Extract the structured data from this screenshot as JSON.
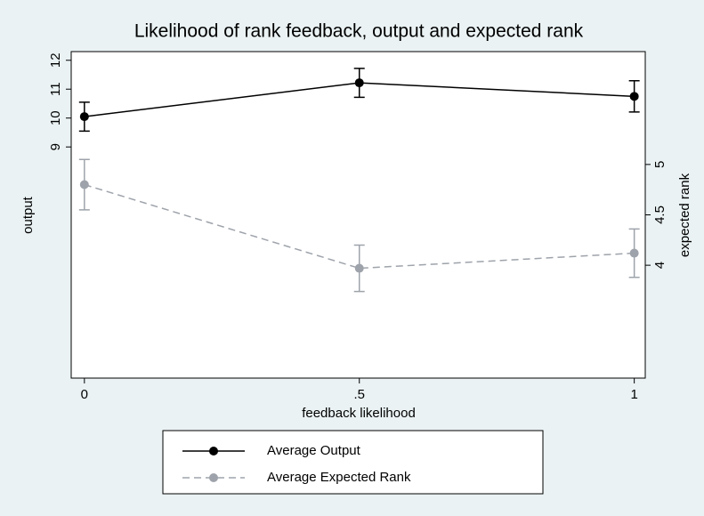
{
  "chart_data": {
    "type": "line",
    "title": "Likelihood of rank feedback, output and expected rank",
    "xlabel": "feedback likelihood",
    "ylabel": "output",
    "y2label": "expected rank",
    "x": [
      0,
      0.5,
      1
    ],
    "xlim": [
      -0.024,
      1.02
    ],
    "xticks": [
      0,
      {
        "value": 0.5,
        "label": ".5"
      },
      1
    ],
    "ylim": [
      1,
      12.3
    ],
    "yticks": [
      9,
      10,
      11,
      12
    ],
    "y2lim": [
      2.88,
      6.12
    ],
    "y2ticks": [
      4,
      {
        "value": 4.5,
        "label": "4.5"
      },
      5
    ],
    "grid": false,
    "legend": "bottom",
    "series": [
      {
        "name": "Average Output",
        "color": "#000000",
        "line_style": "solid",
        "axis": "y",
        "values": [
          10.05,
          11.22,
          10.75
        ],
        "errors": [
          0.5,
          0.5,
          0.54
        ]
      },
      {
        "name": "Average Expected Rank",
        "color": "#9ea3ab",
        "line_style": "dashed",
        "axis": "y2",
        "values": [
          4.8,
          3.97,
          4.12
        ],
        "errors": [
          0.25,
          0.23,
          0.24
        ]
      }
    ]
  }
}
